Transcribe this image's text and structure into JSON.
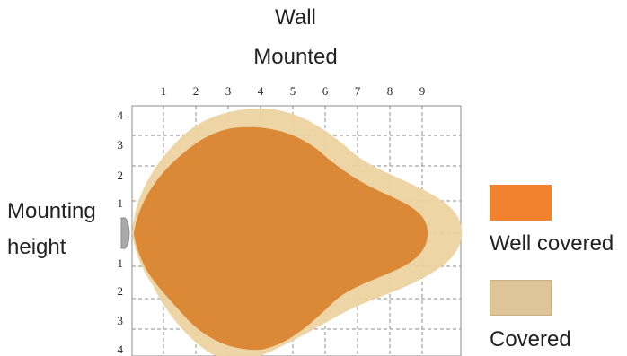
{
  "title_lines": [
    "Wall",
    "Mounted"
  ],
  "side_label_lines": [
    "Mounting",
    "height"
  ],
  "x_ticks": [
    "1",
    "2",
    "3",
    "4",
    "5",
    "6",
    "7",
    "8",
    "9"
  ],
  "y_ticks_upper": [
    "4",
    "3",
    "2",
    "1"
  ],
  "y_ticks_lower": [
    "1",
    "2",
    "3",
    "4"
  ],
  "legend": [
    {
      "label": "Well covered",
      "color": "#f3822f"
    },
    {
      "label": "Covered",
      "color": "#ddc597"
    }
  ],
  "colors": {
    "covered_zone": "#ecd3a0",
    "well_covered_zone": "#d9822e",
    "sensor": "#a9a9a9",
    "grid": "#8c8c8c"
  }
}
